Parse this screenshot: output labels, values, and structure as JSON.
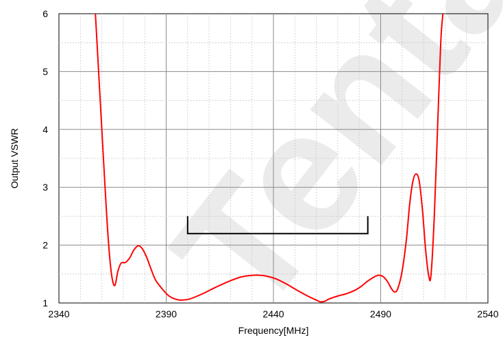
{
  "chart_data": {
    "type": "line",
    "title": "",
    "xlabel": "Frequency[MHz]",
    "ylabel": "Output VSWR",
    "xlim": [
      2340,
      2540
    ],
    "ylim": [
      1,
      6
    ],
    "xticks": [
      2340,
      2390,
      2440,
      2490,
      2540
    ],
    "yticks": [
      1,
      2,
      3,
      4,
      5,
      6
    ],
    "x_minor_step": 10,
    "y_minor_step": 0.5,
    "grid": true,
    "legend": "none",
    "series": [
      {
        "color": "#ff0000",
        "points": [
          [
            2357.0,
            6.0
          ],
          [
            2358.5,
            5.0
          ],
          [
            2360.0,
            4.0
          ],
          [
            2361.5,
            3.0
          ],
          [
            2363.0,
            2.1
          ],
          [
            2364.5,
            1.5
          ],
          [
            2366.0,
            1.3
          ],
          [
            2367.5,
            1.55
          ],
          [
            2369.0,
            1.69
          ],
          [
            2371.0,
            1.7
          ],
          [
            2373.0,
            1.78
          ],
          [
            2375.0,
            1.92
          ],
          [
            2377.0,
            1.99
          ],
          [
            2379.0,
            1.93
          ],
          [
            2381.0,
            1.78
          ],
          [
            2383.0,
            1.58
          ],
          [
            2385.0,
            1.4
          ],
          [
            2388.0,
            1.25
          ],
          [
            2391.0,
            1.13
          ],
          [
            2394.0,
            1.07
          ],
          [
            2397.0,
            1.05
          ],
          [
            2401.0,
            1.07
          ],
          [
            2407.0,
            1.16
          ],
          [
            2413.0,
            1.27
          ],
          [
            2419.0,
            1.37
          ],
          [
            2425.0,
            1.45
          ],
          [
            2431.0,
            1.48
          ],
          [
            2436.0,
            1.47
          ],
          [
            2441.0,
            1.42
          ],
          [
            2446.0,
            1.33
          ],
          [
            2451.0,
            1.22
          ],
          [
            2456.0,
            1.12
          ],
          [
            2460.0,
            1.05
          ],
          [
            2462.0,
            1.02
          ],
          [
            2464.0,
            1.03
          ],
          [
            2466.0,
            1.07
          ],
          [
            2470.0,
            1.12
          ],
          [
            2474.0,
            1.16
          ],
          [
            2478.0,
            1.22
          ],
          [
            2481.0,
            1.29
          ],
          [
            2484.0,
            1.38
          ],
          [
            2487.0,
            1.45
          ],
          [
            2489.0,
            1.48
          ],
          [
            2491.0,
            1.46
          ],
          [
            2493.0,
            1.38
          ],
          [
            2495.0,
            1.25
          ],
          [
            2496.5,
            1.19
          ],
          [
            2498.0,
            1.25
          ],
          [
            2500.0,
            1.55
          ],
          [
            2502.0,
            2.1
          ],
          [
            2503.5,
            2.7
          ],
          [
            2505.0,
            3.1
          ],
          [
            2506.5,
            3.23
          ],
          [
            2508.0,
            3.1
          ],
          [
            2509.5,
            2.6
          ],
          [
            2511.0,
            1.9
          ],
          [
            2512.5,
            1.45
          ],
          [
            2513.5,
            1.5
          ],
          [
            2515.0,
            2.5
          ],
          [
            2516.5,
            4.0
          ],
          [
            2518.0,
            5.5
          ],
          [
            2519.0,
            6.0
          ]
        ]
      }
    ],
    "annotations": [
      {
        "type": "bracket",
        "x1": 2400,
        "x2": 2484,
        "y_top": 2.5,
        "y_bottom": 2.2,
        "color": "#000000"
      }
    ]
  },
  "watermark": {
    "text": "Tentativ",
    "color": "#dcdcdc"
  }
}
